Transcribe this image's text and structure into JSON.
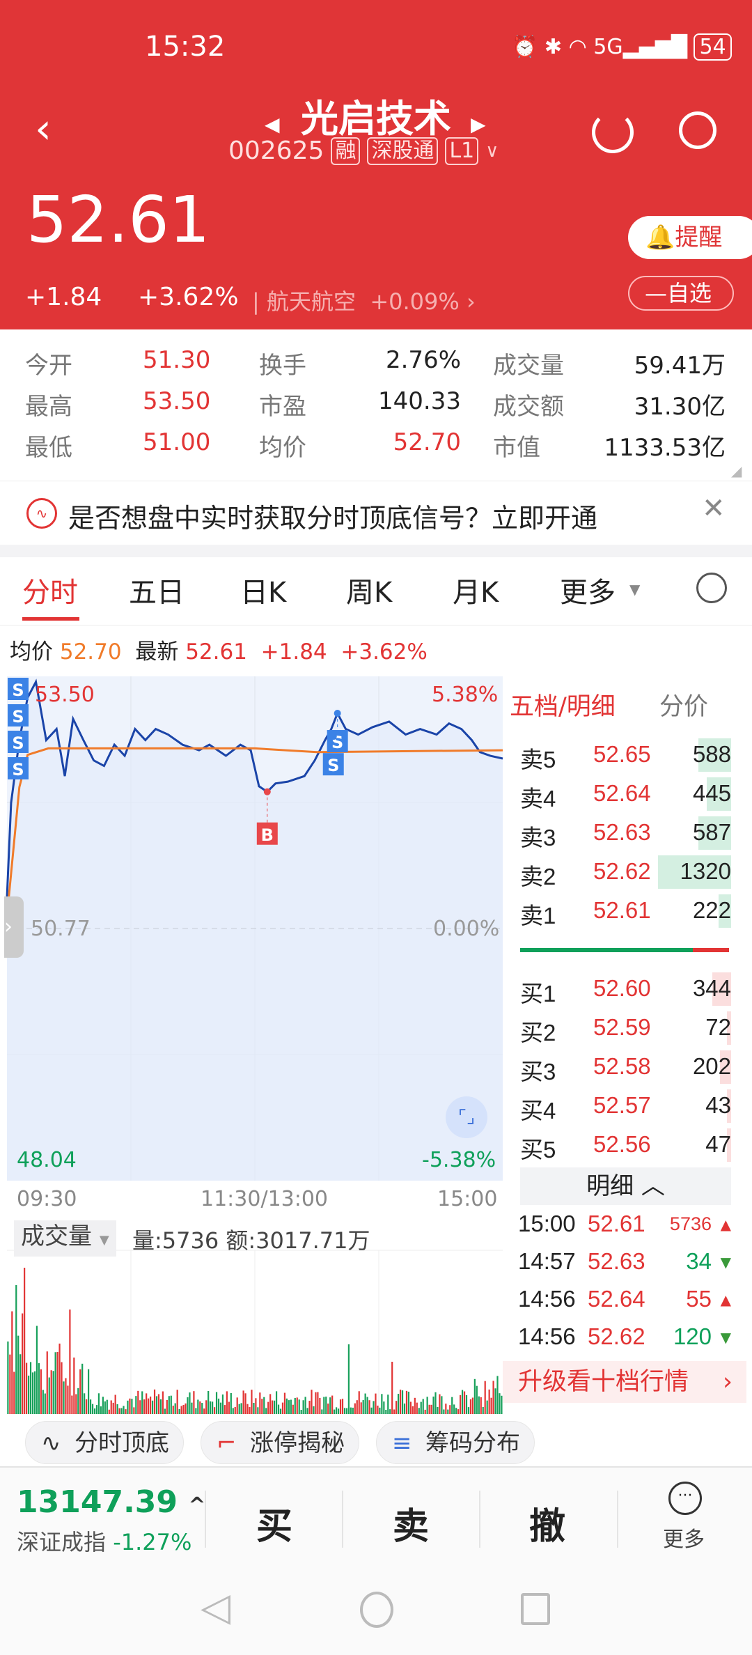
{
  "status": {
    "time": "15:32",
    "battery": "54",
    "network": "5G"
  },
  "header": {
    "title": "光启技术",
    "code": "002625",
    "tags": [
      "融",
      "深股通",
      "L1"
    ],
    "price": "52.61",
    "change": "+1.84",
    "change_pct": "+3.62%",
    "sector": "航天航空",
    "sector_pct": "+0.09%",
    "remind": "提醒",
    "watch": "自选",
    "accent": "#e03537"
  },
  "stats": [
    {
      "label": "今开",
      "value": "51.30",
      "label2": "换手",
      "value2": "2.76%",
      "label3": "成交量",
      "value3": "59.41万"
    },
    {
      "label": "最高",
      "value": "53.50",
      "label2": "市盈",
      "value2": "140.33",
      "label3": "成交额",
      "value3": "31.30亿"
    },
    {
      "label": "最低",
      "value": "51.00",
      "label2": "均价",
      "value2": "52.70",
      "label3": "市值",
      "value3": "1133.53亿"
    }
  ],
  "banner": {
    "text": "是否想盘中实时获取分时顶底信号？立即开通"
  },
  "tabs": [
    "分时",
    "五日",
    "日K",
    "周K",
    "月K",
    "更多"
  ],
  "info": {
    "avg_label": "均价",
    "avg": "52.70",
    "latest_label": "最新",
    "latest": "52.61",
    "chg": "+1.84",
    "pct": "+3.62%"
  },
  "chart": {
    "high": "53.50",
    "high_pct": "5.38%",
    "mid": "50.77",
    "mid_pct": "0.00%",
    "low": "48.04",
    "low_pct": "-5.38%",
    "times": [
      "09:30",
      "11:30/13:00",
      "15:00"
    ],
    "price_series": [
      [
        0,
        51.11
      ],
      [
        2,
        52.13
      ],
      [
        6,
        52.81
      ],
      [
        10,
        53.27
      ],
      [
        14,
        53.44
      ],
      [
        19,
        52.81
      ],
      [
        24,
        52.93
      ],
      [
        28,
        52.42
      ],
      [
        32,
        53.04
      ],
      [
        37,
        52.81
      ],
      [
        42,
        52.59
      ],
      [
        47,
        52.53
      ],
      [
        52,
        52.76
      ],
      [
        57,
        52.64
      ],
      [
        62,
        52.93
      ],
      [
        67,
        52.81
      ],
      [
        72,
        52.93
      ],
      [
        78,
        52.87
      ],
      [
        85,
        52.76
      ],
      [
        93,
        52.7
      ],
      [
        98,
        52.76
      ],
      [
        106,
        52.64
      ],
      [
        113,
        52.76
      ],
      [
        118,
        52.7
      ],
      [
        122,
        52.31
      ],
      [
        126,
        52.25
      ],
      [
        130,
        52.34
      ],
      [
        136,
        52.36
      ],
      [
        144,
        52.42
      ],
      [
        149,
        52.59
      ],
      [
        154,
        52.81
      ],
      [
        157,
        52.93
      ],
      [
        160,
        53.1
      ],
      [
        164,
        52.93
      ],
      [
        170,
        52.87
      ],
      [
        177,
        52.95
      ],
      [
        185,
        53.01
      ],
      [
        193,
        52.87
      ],
      [
        200,
        52.93
      ],
      [
        208,
        52.87
      ],
      [
        214,
        52.99
      ],
      [
        220,
        52.93
      ],
      [
        225,
        52.81
      ],
      [
        229,
        52.68
      ],
      [
        234,
        52.64
      ],
      [
        240,
        52.61
      ]
    ],
    "avg_series": [
      [
        0,
        50.9
      ],
      [
        3,
        51.6
      ],
      [
        6,
        52.3
      ],
      [
        10,
        52.65
      ],
      [
        20,
        52.72
      ],
      [
        120,
        52.72
      ],
      [
        150,
        52.68
      ],
      [
        240,
        52.7
      ]
    ],
    "signals": [
      {
        "t": 126,
        "p": 52.25,
        "type": "B"
      },
      {
        "t": 160,
        "p": 53.1,
        "type": "S"
      },
      {
        "t": 158,
        "p": 52.85,
        "type": "S"
      }
    ],
    "price_color": "#1a44a8",
    "avg_color": "#f07b2a",
    "volume_label": "成交量",
    "volume_text": "量:5736 额:3017.71万"
  },
  "orderbook": {
    "title": "五档/明细",
    "title2": "分价",
    "sell": [
      {
        "l": "卖5",
        "p": "52.65",
        "v": 588
      },
      {
        "l": "卖4",
        "p": "52.64",
        "v": 445
      },
      {
        "l": "卖3",
        "p": "52.63",
        "v": 587
      },
      {
        "l": "卖2",
        "p": "52.62",
        "v": 1320
      },
      {
        "l": "卖1",
        "p": "52.61",
        "v": 222
      }
    ],
    "buy": [
      {
        "l": "买1",
        "p": "52.60",
        "v": 344
      },
      {
        "l": "买2",
        "p": "52.59",
        "v": 72
      },
      {
        "l": "买3",
        "p": "52.58",
        "v": 202
      },
      {
        "l": "买4",
        "p": "52.57",
        "v": 43
      },
      {
        "l": "买5",
        "p": "52.56",
        "v": 47
      }
    ],
    "detail_label": "明细",
    "trades": [
      {
        "t": "15:00",
        "p": "52.61",
        "v": "5736",
        "dir": "up"
      },
      {
        "t": "14:57",
        "p": "52.63",
        "v": "34",
        "dir": "down"
      },
      {
        "t": "14:56",
        "p": "52.64",
        "v": "55",
        "dir": "up"
      },
      {
        "t": "14:56",
        "p": "52.62",
        "v": "120",
        "dir": "down"
      }
    ],
    "upgrade": "升级看十档行情"
  },
  "chips": [
    "分时顶底",
    "涨停揭秘",
    "筹码分布"
  ],
  "bottom": {
    "index_value": "13147.39",
    "index_name": "深证成指",
    "index_pct": "-1.27%",
    "buy": "买",
    "sell": "卖",
    "cancel": "撤",
    "more": "更多"
  }
}
